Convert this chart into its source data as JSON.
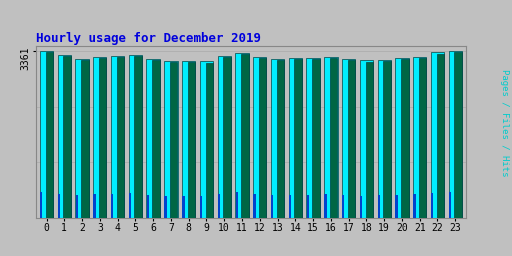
{
  "title": "Hourly usage for December 2019",
  "ylabel": "Pages / Files / Hits",
  "xlabel_ticks": [
    0,
    1,
    2,
    3,
    4,
    5,
    6,
    7,
    8,
    9,
    10,
    11,
    12,
    13,
    14,
    15,
    16,
    17,
    18,
    19,
    20,
    21,
    22,
    23
  ],
  "ytick_label": "3361",
  "background_color": "#c0c0c0",
  "plot_bg_color": "#c0c0c0",
  "title_color": "#0000dd",
  "ylabel_color": "#00cccc",
  "bar_color_hits": "#00eeff",
  "bar_color_pages": "#006644",
  "bar_color_files": "#0044cc",
  "bar_edge_color": "#004444",
  "hits": [
    3361,
    3270,
    3197,
    3230,
    3252,
    3274,
    3192,
    3155,
    3148,
    3140,
    3255,
    3310,
    3230,
    3195,
    3210,
    3220,
    3240,
    3200,
    3160,
    3175,
    3220,
    3230,
    3330,
    3355
  ],
  "pages": [
    3330,
    3250,
    3170,
    3205,
    3225,
    3245,
    3165,
    3130,
    3120,
    3115,
    3225,
    3290,
    3205,
    3170,
    3185,
    3195,
    3210,
    3175,
    3135,
    3145,
    3195,
    3205,
    3295,
    3340
  ],
  "files": [
    520,
    480,
    450,
    465,
    470,
    485,
    460,
    440,
    435,
    430,
    470,
    510,
    465,
    450,
    455,
    460,
    468,
    455,
    440,
    445,
    460,
    465,
    500,
    520
  ],
  "ymax": 3450,
  "ymin": 0,
  "ytick_pos": 3361
}
